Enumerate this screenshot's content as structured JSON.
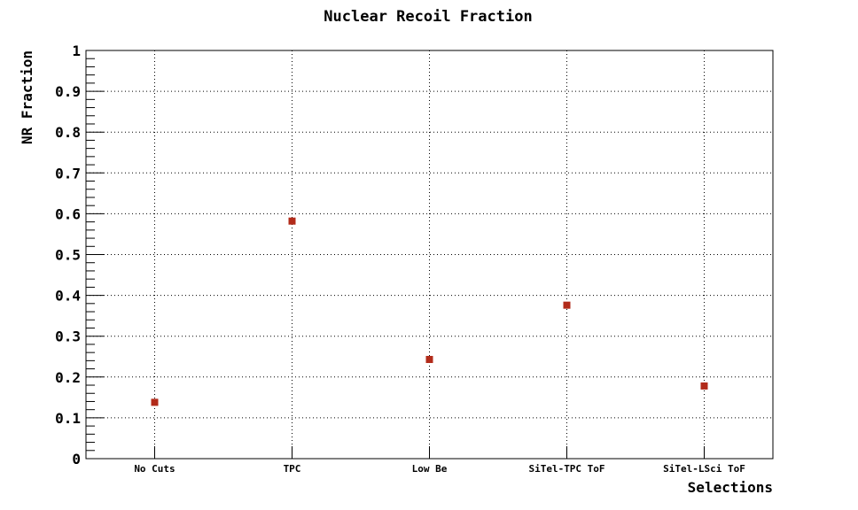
{
  "chart_data": {
    "type": "scatter",
    "title": "Nuclear Recoil Fraction",
    "xlabel": "Selections",
    "ylabel": "NR Fraction",
    "categories": [
      "No Cuts",
      "TPC",
      "Low Be",
      "SiTel-TPC ToF",
      "SiTel-LSci ToF"
    ],
    "values": [
      0.138,
      0.582,
      0.243,
      0.376,
      0.178
    ],
    "ylim": [
      0,
      1
    ],
    "y_ticks": [
      "0",
      "0.1",
      "0.2",
      "0.3",
      "0.4",
      "0.5",
      "0.6",
      "0.7",
      "0.8",
      "0.9",
      "1"
    ],
    "grid": true,
    "marker": "square",
    "marker_color": "#b22b1a"
  }
}
